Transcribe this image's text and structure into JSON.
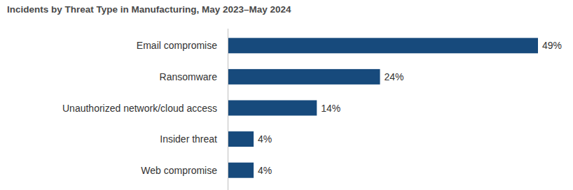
{
  "chart_data": {
    "type": "bar",
    "title": "Incidents by Threat Type in Manufacturing, May 2023–May 2024",
    "categories": [
      "Email compromise",
      "Ransomware",
      "Unauthorized network/cloud access",
      "Insider threat",
      "Web compromise"
    ],
    "values": [
      49,
      24,
      14,
      4,
      4
    ],
    "value_labels": [
      "49%",
      "24%",
      "14%",
      "4%",
      "4%"
    ],
    "color": "#174a7c",
    "orientation": "horizontal",
    "data_labels": true,
    "tick_labels": "y"
  }
}
